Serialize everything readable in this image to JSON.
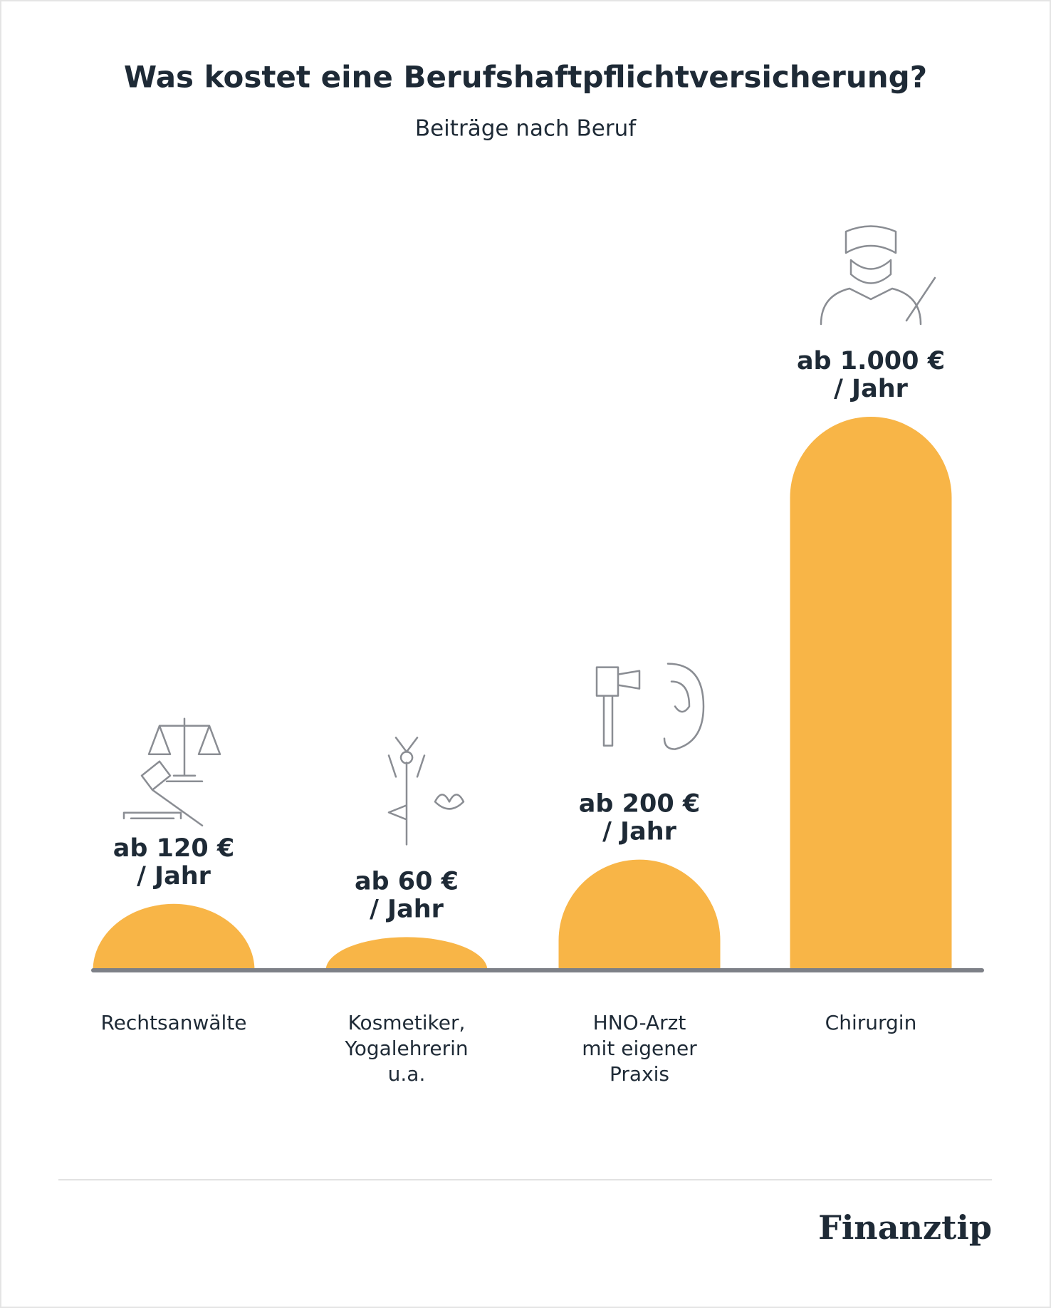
{
  "chart_data": {
    "type": "bar",
    "title": "Was kostet eine Berufshaftpflichtversicherung?",
    "subtitle": "Beiträge nach Beruf",
    "categories": [
      [
        "Rechtsanwälte"
      ],
      [
        "Kosmetiker,",
        "Yogalehrerin",
        "u.a."
      ],
      [
        "HNO-Arzt",
        "mit eigener",
        "Praxis"
      ],
      [
        "Chirurgin"
      ]
    ],
    "values": [
      120,
      60,
      200,
      1000
    ],
    "value_labels": [
      [
        "ab 120 €",
        "/ Jahr"
      ],
      [
        "ab 60 €",
        "/ Jahr"
      ],
      [
        "ab 200 €",
        "/ Jahr"
      ],
      [
        "ab 1.000 €",
        "/ Jahr"
      ]
    ],
    "color": "#f8b547",
    "brand": "Finanztip"
  }
}
